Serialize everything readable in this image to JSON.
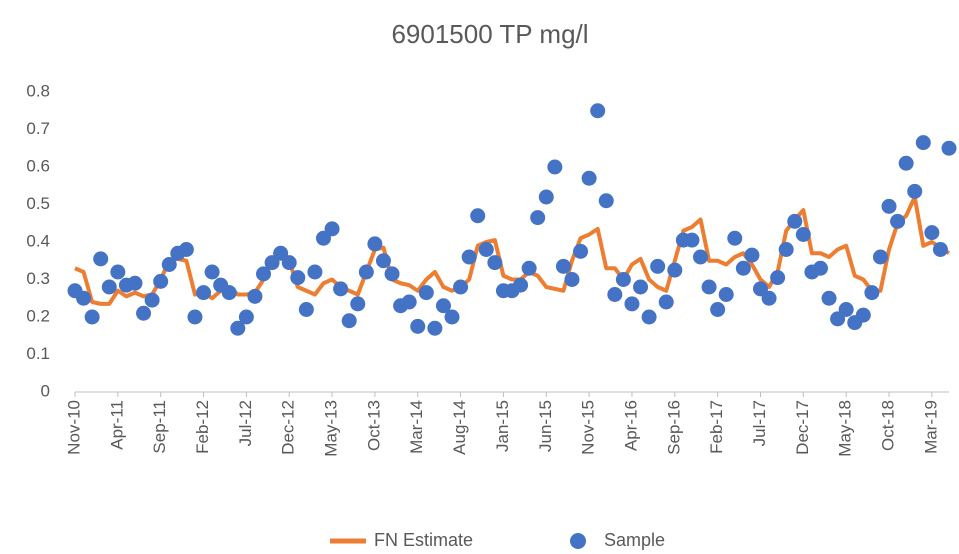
{
  "chart_data": {
    "type": "line+scatter",
    "title": "6901500 TP mg/l",
    "categories": [
      "Nov-10",
      null,
      null,
      null,
      null,
      "Apr-11",
      null,
      null,
      null,
      null,
      "Sep-11",
      null,
      null,
      null,
      null,
      "Feb-12",
      null,
      null,
      null,
      null,
      "Jul-12",
      null,
      null,
      null,
      null,
      "Dec-12",
      null,
      null,
      null,
      null,
      "May-13",
      null,
      null,
      null,
      null,
      "Oct-13",
      null,
      null,
      null,
      null,
      "Mar-14",
      null,
      null,
      null,
      null,
      "Aug-14",
      null,
      null,
      null,
      null,
      "Jan-15",
      null,
      null,
      null,
      null,
      "Jun-15",
      null,
      null,
      null,
      null,
      "Nov-15",
      null,
      null,
      null,
      null,
      "Apr-16",
      null,
      null,
      null,
      null,
      "Sep-16",
      null,
      null,
      null,
      null,
      "Feb-17",
      null,
      null,
      null,
      null,
      "Jul-17",
      null,
      null,
      null,
      null,
      "Dec-17",
      null,
      null,
      null,
      null,
      "May-18",
      null,
      null,
      null,
      null,
      "Oct-18",
      null,
      null,
      null,
      null,
      "Mar-19",
      null,
      null
    ],
    "series": [
      {
        "name": "FN Estimate",
        "kind": "line",
        "color": "#ed7d31",
        "values": [
          0.33,
          0.32,
          0.24,
          0.235,
          0.235,
          0.27,
          0.255,
          0.265,
          0.255,
          0.26,
          0.3,
          0.35,
          0.355,
          0.35,
          0.26,
          0.265,
          0.25,
          0.27,
          0.28,
          0.26,
          0.26,
          0.265,
          0.3,
          0.35,
          0.37,
          0.35,
          0.28,
          0.27,
          0.26,
          0.29,
          0.3,
          0.28,
          0.27,
          0.26,
          0.32,
          0.38,
          0.385,
          0.3,
          0.29,
          0.285,
          0.27,
          0.3,
          0.32,
          0.28,
          0.27,
          0.28,
          0.3,
          0.39,
          0.4,
          0.405,
          0.31,
          0.3,
          0.3,
          0.32,
          0.31,
          0.28,
          0.275,
          0.27,
          0.35,
          0.41,
          0.42,
          0.435,
          0.33,
          0.33,
          0.3,
          0.34,
          0.355,
          0.3,
          0.28,
          0.27,
          0.35,
          0.43,
          0.44,
          0.46,
          0.35,
          0.35,
          0.34,
          0.36,
          0.37,
          0.34,
          0.3,
          0.28,
          0.32,
          0.43,
          0.46,
          0.485,
          0.37,
          0.37,
          0.36,
          0.38,
          0.39,
          0.31,
          0.3,
          0.27,
          0.27,
          0.38,
          0.45,
          0.47,
          0.52,
          0.39,
          0.4,
          0.385,
          0.37
        ]
      },
      {
        "name": "Sample",
        "kind": "scatter",
        "color": "#4472c4",
        "values": [
          0.27,
          0.25,
          0.2,
          0.355,
          0.28,
          0.32,
          0.285,
          0.29,
          0.21,
          0.245,
          0.295,
          0.34,
          0.37,
          0.38,
          0.2,
          0.265,
          0.32,
          0.285,
          0.265,
          0.17,
          0.2,
          0.255,
          0.315,
          0.345,
          0.37,
          0.345,
          0.305,
          0.22,
          0.32,
          0.41,
          0.435,
          0.275,
          0.19,
          0.235,
          0.32,
          0.395,
          0.35,
          0.315,
          0.23,
          0.24,
          0.175,
          0.265,
          0.17,
          0.23,
          0.2,
          0.28,
          0.36,
          0.47,
          0.38,
          0.345,
          0.27,
          0.27,
          0.285,
          0.33,
          0.465,
          0.52,
          0.6,
          0.335,
          0.3,
          0.375,
          0.57,
          0.75,
          0.51,
          0.26,
          0.3,
          0.235,
          0.28,
          0.2,
          0.335,
          0.24,
          0.325,
          0.405,
          0.405,
          0.36,
          0.28,
          0.22,
          0.26,
          0.41,
          0.33,
          0.365,
          0.275,
          0.25,
          0.305,
          0.38,
          0.455,
          0.42,
          0.32,
          0.33,
          0.25,
          0.195,
          0.22,
          0.185,
          0.205,
          0.265,
          0.36,
          0.495,
          0.455,
          0.61,
          0.535,
          0.665,
          0.425,
          0.38,
          0.65
        ]
      }
    ],
    "ylim": [
      0,
      0.8
    ],
    "yticks": [
      0,
      0.1,
      0.2,
      0.3,
      0.4,
      0.5,
      0.6,
      0.7,
      0.8
    ],
    "grid": false,
    "legend": "bottom"
  }
}
